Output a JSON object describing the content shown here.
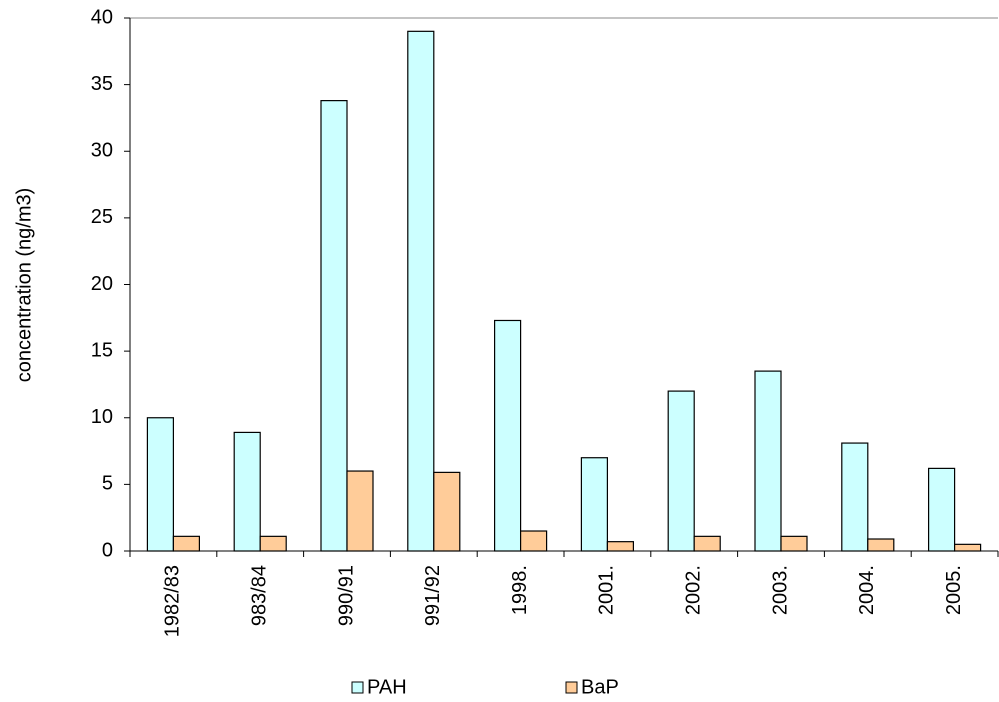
{
  "chart_data": {
    "type": "bar",
    "y_label": "concentration (ng/m3)",
    "categories": [
      "1982/83",
      "983/84",
      "990/91",
      "991/92",
      "1998.",
      "2001.",
      "2002.",
      "2003.",
      "2004.",
      "2005."
    ],
    "series": [
      {
        "name": "PAH",
        "color": "#ccffff",
        "values": [
          10.0,
          8.9,
          33.8,
          39.0,
          17.3,
          7.0,
          12.0,
          13.5,
          8.1,
          6.2
        ]
      },
      {
        "name": "BaP",
        "color": "#ffcc99",
        "values": [
          1.1,
          1.1,
          6.0,
          5.9,
          1.5,
          0.7,
          1.1,
          1.1,
          0.9,
          0.5
        ]
      }
    ],
    "ylim": [
      0,
      40
    ],
    "yticks": [
      0,
      5,
      10,
      15,
      20,
      25,
      30,
      35,
      40
    ],
    "grid": false
  }
}
